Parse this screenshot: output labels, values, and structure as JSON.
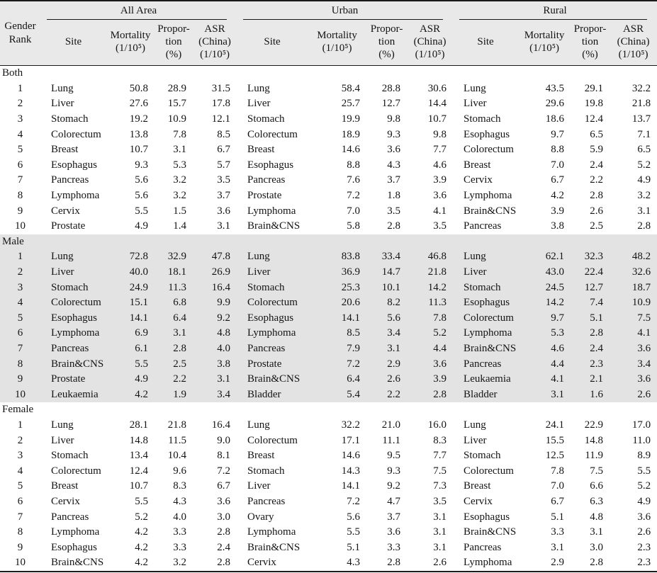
{
  "table": {
    "corner_header": "Gender\nRank",
    "groups": [
      {
        "label": "All Area"
      },
      {
        "label": "Urban"
      },
      {
        "label": "Rural"
      }
    ],
    "subheaders": {
      "site": "Site",
      "mortality": "Mortality\n(1/10⁵)",
      "proportion": "Propor-\ntion\n(%)",
      "asr": "ASR\n(China)\n(1/10⁵)"
    },
    "colors": {
      "header_bg": "#e9e9e9",
      "male_section_bg": "#e3e3e3",
      "border": "#1a1a1a"
    },
    "sections": [
      {
        "label": "Both",
        "rows": [
          {
            "rank": "1",
            "all": {
              "site": "Lung",
              "mortality": "50.8",
              "proportion": "28.9",
              "asr": "31.5"
            },
            "urban": {
              "site": "Lung",
              "mortality": "58.4",
              "proportion": "28.8",
              "asr": "30.6"
            },
            "rural": {
              "site": "Lung",
              "mortality": "43.5",
              "proportion": "29.1",
              "asr": "32.2"
            }
          },
          {
            "rank": "2",
            "all": {
              "site": "Liver",
              "mortality": "27.6",
              "proportion": "15.7",
              "asr": "17.8"
            },
            "urban": {
              "site": "Liver",
              "mortality": "25.7",
              "proportion": "12.7",
              "asr": "14.4"
            },
            "rural": {
              "site": "Liver",
              "mortality": "29.6",
              "proportion": "19.8",
              "asr": "21.8"
            }
          },
          {
            "rank": "3",
            "all": {
              "site": "Stomach",
              "mortality": "19.2",
              "proportion": "10.9",
              "asr": "12.1"
            },
            "urban": {
              "site": "Stomach",
              "mortality": "19.9",
              "proportion": "9.8",
              "asr": "10.7"
            },
            "rural": {
              "site": "Stomach",
              "mortality": "18.6",
              "proportion": "12.4",
              "asr": "13.7"
            }
          },
          {
            "rank": "4",
            "all": {
              "site": "Colorectum",
              "mortality": "13.8",
              "proportion": "7.8",
              "asr": "8.5"
            },
            "urban": {
              "site": "Colorectum",
              "mortality": "18.9",
              "proportion": "9.3",
              "asr": "9.8"
            },
            "rural": {
              "site": "Esophagus",
              "mortality": "9.7",
              "proportion": "6.5",
              "asr": "7.1"
            }
          },
          {
            "rank": "5",
            "all": {
              "site": "Breast",
              "mortality": "10.7",
              "proportion": "3.1",
              "asr": "6.7"
            },
            "urban": {
              "site": "Breast",
              "mortality": "14.6",
              "proportion": "3.6",
              "asr": "7.7"
            },
            "rural": {
              "site": "Colorectum",
              "mortality": "8.8",
              "proportion": "5.9",
              "asr": "6.5"
            }
          },
          {
            "rank": "6",
            "all": {
              "site": "Esophagus",
              "mortality": "9.3",
              "proportion": "5.3",
              "asr": "5.7"
            },
            "urban": {
              "site": "Esophagus",
              "mortality": "8.8",
              "proportion": "4.3",
              "asr": "4.6"
            },
            "rural": {
              "site": "Breast",
              "mortality": "7.0",
              "proportion": "2.4",
              "asr": "5.2"
            }
          },
          {
            "rank": "7",
            "all": {
              "site": "Pancreas",
              "mortality": "5.6",
              "proportion": "3.2",
              "asr": "3.5"
            },
            "urban": {
              "site": "Pancreas",
              "mortality": "7.6",
              "proportion": "3.7",
              "asr": "3.9"
            },
            "rural": {
              "site": "Cervix",
              "mortality": "6.7",
              "proportion": "2.2",
              "asr": "4.9"
            }
          },
          {
            "rank": "8",
            "all": {
              "site": "Lymphoma",
              "mortality": "5.6",
              "proportion": "3.2",
              "asr": "3.7"
            },
            "urban": {
              "site": "Prostate",
              "mortality": "7.2",
              "proportion": "1.8",
              "asr": "3.6"
            },
            "rural": {
              "site": "Lymphoma",
              "mortality": "4.2",
              "proportion": "2.8",
              "asr": "3.2"
            }
          },
          {
            "rank": "9",
            "all": {
              "site": "Cervix",
              "mortality": "5.5",
              "proportion": "1.5",
              "asr": "3.6"
            },
            "urban": {
              "site": "Lymphoma",
              "mortality": "7.0",
              "proportion": "3.5",
              "asr": "4.1"
            },
            "rural": {
              "site": "Brain&CNS",
              "mortality": "3.9",
              "proportion": "2.6",
              "asr": "3.1"
            }
          },
          {
            "rank": "10",
            "all": {
              "site": "Prostate",
              "mortality": "4.9",
              "proportion": "1.4",
              "asr": "3.1"
            },
            "urban": {
              "site": "Brain&CNS",
              "mortality": "5.8",
              "proportion": "2.8",
              "asr": "3.5"
            },
            "rural": {
              "site": "Pancreas",
              "mortality": "3.8",
              "proportion": "2.5",
              "asr": "2.8"
            }
          }
        ]
      },
      {
        "label": "Male",
        "rows": [
          {
            "rank": "1",
            "all": {
              "site": "Lung",
              "mortality": "72.8",
              "proportion": "32.9",
              "asr": "47.8"
            },
            "urban": {
              "site": "Lung",
              "mortality": "83.8",
              "proportion": "33.4",
              "asr": "46.8"
            },
            "rural": {
              "site": "Lung",
              "mortality": "62.1",
              "proportion": "32.3",
              "asr": "48.2"
            }
          },
          {
            "rank": "2",
            "all": {
              "site": "Liver",
              "mortality": "40.0",
              "proportion": "18.1",
              "asr": "26.9"
            },
            "urban": {
              "site": "Liver",
              "mortality": "36.9",
              "proportion": "14.7",
              "asr": "21.8"
            },
            "rural": {
              "site": "Liver",
              "mortality": "43.0",
              "proportion": "22.4",
              "asr": "32.6"
            }
          },
          {
            "rank": "3",
            "all": {
              "site": "Stomach",
              "mortality": "24.9",
              "proportion": "11.3",
              "asr": "16.4"
            },
            "urban": {
              "site": "Stomach",
              "mortality": "25.3",
              "proportion": "10.1",
              "asr": "14.2"
            },
            "rural": {
              "site": "Stomach",
              "mortality": "24.5",
              "proportion": "12.7",
              "asr": "18.7"
            }
          },
          {
            "rank": "4",
            "all": {
              "site": "Colorectum",
              "mortality": "15.1",
              "proportion": "6.8",
              "asr": "9.9"
            },
            "urban": {
              "site": "Colorectum",
              "mortality": "20.6",
              "proportion": "8.2",
              "asr": "11.3"
            },
            "rural": {
              "site": "Esophagus",
              "mortality": "14.2",
              "proportion": "7.4",
              "asr": "10.9"
            }
          },
          {
            "rank": "5",
            "all": {
              "site": "Esophagus",
              "mortality": "14.1",
              "proportion": "6.4",
              "asr": "9.2"
            },
            "urban": {
              "site": "Esophagus",
              "mortality": "14.1",
              "proportion": "5.6",
              "asr": "7.8"
            },
            "rural": {
              "site": "Colorectum",
              "mortality": "9.7",
              "proportion": "5.1",
              "asr": "7.5"
            }
          },
          {
            "rank": "6",
            "all": {
              "site": "Lymphoma",
              "mortality": "6.9",
              "proportion": "3.1",
              "asr": "4.8"
            },
            "urban": {
              "site": "Lymphoma",
              "mortality": "8.5",
              "proportion": "3.4",
              "asr": "5.2"
            },
            "rural": {
              "site": "Lymphoma",
              "mortality": "5.3",
              "proportion": "2.8",
              "asr": "4.1"
            }
          },
          {
            "rank": "7",
            "all": {
              "site": "Pancreas",
              "mortality": "6.1",
              "proportion": "2.8",
              "asr": "4.0"
            },
            "urban": {
              "site": "Pancreas",
              "mortality": "7.9",
              "proportion": "3.1",
              "asr": "4.4"
            },
            "rural": {
              "site": "Brain&CNS",
              "mortality": "4.6",
              "proportion": "2.4",
              "asr": "3.6"
            }
          },
          {
            "rank": "8",
            "all": {
              "site": "Brain&CNS",
              "mortality": "5.5",
              "proportion": "2.5",
              "asr": "3.8"
            },
            "urban": {
              "site": "Prostate",
              "mortality": "7.2",
              "proportion": "2.9",
              "asr": "3.6"
            },
            "rural": {
              "site": "Pancreas",
              "mortality": "4.4",
              "proportion": "2.3",
              "asr": "3.4"
            }
          },
          {
            "rank": "9",
            "all": {
              "site": "Prostate",
              "mortality": "4.9",
              "proportion": "2.2",
              "asr": "3.1"
            },
            "urban": {
              "site": "Brain&CNS",
              "mortality": "6.4",
              "proportion": "2.6",
              "asr": "3.9"
            },
            "rural": {
              "site": "Leukaemia",
              "mortality": "4.1",
              "proportion": "2.1",
              "asr": "3.6"
            }
          },
          {
            "rank": "10",
            "all": {
              "site": "Leukaemia",
              "mortality": "4.2",
              "proportion": "1.9",
              "asr": "3.4"
            },
            "urban": {
              "site": "Bladder",
              "mortality": "5.4",
              "proportion": "2.2",
              "asr": "2.8"
            },
            "rural": {
              "site": "Bladder",
              "mortality": "3.1",
              "proportion": "1.6",
              "asr": "2.6"
            }
          }
        ]
      },
      {
        "label": "Female",
        "rows": [
          {
            "rank": "1",
            "all": {
              "site": "Lung",
              "mortality": "28.1",
              "proportion": "21.8",
              "asr": "16.4"
            },
            "urban": {
              "site": "Lung",
              "mortality": "32.2",
              "proportion": "21.0",
              "asr": "16.0"
            },
            "rural": {
              "site": "Lung",
              "mortality": "24.1",
              "proportion": "22.9",
              "asr": "17.0"
            }
          },
          {
            "rank": "2",
            "all": {
              "site": "Liver",
              "mortality": "14.8",
              "proportion": "11.5",
              "asr": "9.0"
            },
            "urban": {
              "site": "Colorectum",
              "mortality": "17.1",
              "proportion": "11.1",
              "asr": "8.3"
            },
            "rural": {
              "site": "Liver",
              "mortality": "15.5",
              "proportion": "14.8",
              "asr": "11.0"
            }
          },
          {
            "rank": "3",
            "all": {
              "site": "Stomach",
              "mortality": "13.4",
              "proportion": "10.4",
              "asr": "8.1"
            },
            "urban": {
              "site": "Breast",
              "mortality": "14.6",
              "proportion": "9.5",
              "asr": "7.7"
            },
            "rural": {
              "site": "Stomach",
              "mortality": "12.5",
              "proportion": "11.9",
              "asr": "8.9"
            }
          },
          {
            "rank": "4",
            "all": {
              "site": "Colorectum",
              "mortality": "12.4",
              "proportion": "9.6",
              "asr": "7.2"
            },
            "urban": {
              "site": "Stomach",
              "mortality": "14.3",
              "proportion": "9.3",
              "asr": "7.5"
            },
            "rural": {
              "site": "Colorectum",
              "mortality": "7.8",
              "proportion": "7.5",
              "asr": "5.5"
            }
          },
          {
            "rank": "5",
            "all": {
              "site": "Breast",
              "mortality": "10.7",
              "proportion": "8.3",
              "asr": "6.7"
            },
            "urban": {
              "site": "Liver",
              "mortality": "14.1",
              "proportion": "9.2",
              "asr": "7.3"
            },
            "rural": {
              "site": "Breast",
              "mortality": "7.0",
              "proportion": "6.6",
              "asr": "5.2"
            }
          },
          {
            "rank": "6",
            "all": {
              "site": "Cervix",
              "mortality": "5.5",
              "proportion": "4.3",
              "asr": "3.6"
            },
            "urban": {
              "site": "Pancreas",
              "mortality": "7.2",
              "proportion": "4.7",
              "asr": "3.5"
            },
            "rural": {
              "site": "Cervix",
              "mortality": "6.7",
              "proportion": "6.3",
              "asr": "4.9"
            }
          },
          {
            "rank": "7",
            "all": {
              "site": "Pancreas",
              "mortality": "5.2",
              "proportion": "4.0",
              "asr": "3.0"
            },
            "urban": {
              "site": "Ovary",
              "mortality": "5.6",
              "proportion": "3.7",
              "asr": "3.1"
            },
            "rural": {
              "site": "Esophagus",
              "mortality": "5.1",
              "proportion": "4.8",
              "asr": "3.6"
            }
          },
          {
            "rank": "8",
            "all": {
              "site": "Lymphoma",
              "mortality": "4.2",
              "proportion": "3.3",
              "asr": "2.8"
            },
            "urban": {
              "site": "Lymphoma",
              "mortality": "5.5",
              "proportion": "3.6",
              "asr": "3.1"
            },
            "rural": {
              "site": "Brain&CNS",
              "mortality": "3.3",
              "proportion": "3.1",
              "asr": "2.6"
            }
          },
          {
            "rank": "9",
            "all": {
              "site": "Esophagus",
              "mortality": "4.2",
              "proportion": "3.3",
              "asr": "2.4"
            },
            "urban": {
              "site": "Brain&CNS",
              "mortality": "5.1",
              "proportion": "3.3",
              "asr": "3.1"
            },
            "rural": {
              "site": "Pancreas",
              "mortality": "3.1",
              "proportion": "3.0",
              "asr": "2.3"
            }
          },
          {
            "rank": "10",
            "all": {
              "site": "Brain&CNS",
              "mortality": "4.2",
              "proportion": "3.2",
              "asr": "2.8"
            },
            "urban": {
              "site": "Cervix",
              "mortality": "4.3",
              "proportion": "2.8",
              "asr": "2.6"
            },
            "rural": {
              "site": "Lymphoma",
              "mortality": "2.9",
              "proportion": "2.8",
              "asr": "2.3"
            }
          }
        ]
      }
    ]
  }
}
